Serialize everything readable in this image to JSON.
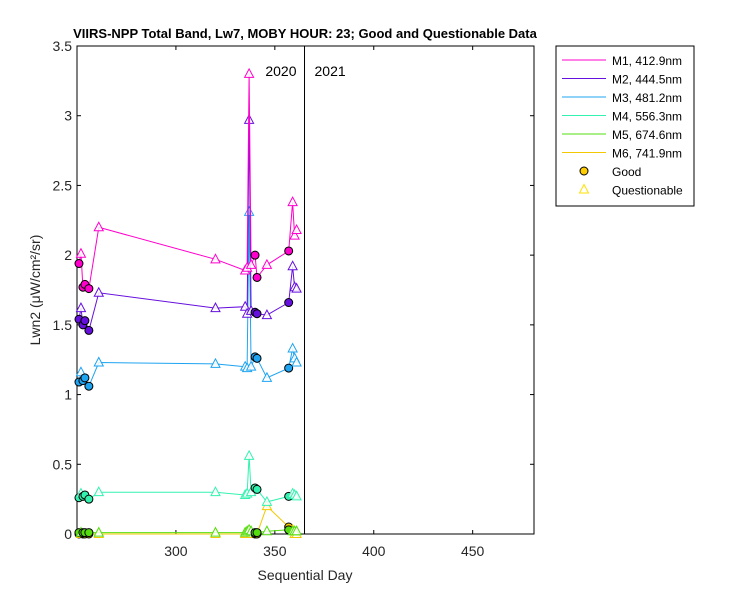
{
  "chart_data": {
    "type": "line",
    "title": "VIIRS-NPP Total Band, Lw7, MOBY HOUR: 23;  Good and Questionable Data",
    "xlabel": "Sequential Day",
    "ylabel": "Lwn2 (μW/cm²/sr)",
    "xlim": [
      250,
      481
    ],
    "ylim": [
      0,
      3.5
    ],
    "xticks": [
      300,
      350,
      400,
      450
    ],
    "yticks": [
      0,
      0.5,
      1,
      1.5,
      2,
      2.5,
      3,
      3.5
    ],
    "xtick_labels": [
      "300",
      "350",
      "400",
      "450"
    ],
    "ytick_labels": [
      "0",
      "0.5",
      "1",
      "1.5",
      "2",
      "2.5",
      "3",
      "3.5"
    ],
    "grid": false,
    "legend_position": "outside-top-right",
    "year_boundary": {
      "x": 365,
      "left_label": "2020",
      "right_label": "2021"
    },
    "x": [
      251,
      252,
      253,
      254,
      256,
      261,
      320,
      335,
      336,
      337,
      338,
      340,
      341,
      346,
      357,
      359,
      360,
      361
    ],
    "q": [
      "G",
      "Q",
      "G",
      "G",
      "G",
      "Q",
      "Q",
      "Q",
      "Q",
      "Q",
      "Q",
      "G",
      "G",
      "Q",
      "G",
      "Q",
      "Q",
      "Q"
    ],
    "series": [
      {
        "name": "M1, 412.9nm",
        "color": "#ff00cc",
        "values": [
          1.94,
          2.01,
          1.77,
          1.79,
          1.76,
          2.2,
          1.97,
          1.89,
          1.91,
          3.3,
          1.93,
          2.0,
          1.84,
          1.93,
          2.03,
          2.38,
          2.14,
          2.18
        ]
      },
      {
        "name": "M2, 444.5nm",
        "color": "#6610dd",
        "values": [
          1.54,
          1.62,
          1.5,
          1.53,
          1.46,
          1.73,
          1.62,
          1.63,
          1.58,
          2.97,
          1.6,
          1.59,
          1.58,
          1.57,
          1.66,
          1.92,
          1.77,
          1.76
        ]
      },
      {
        "name": "M3, 481.2nm",
        "color": "#1ea4f0",
        "values": [
          1.09,
          1.16,
          1.1,
          1.12,
          1.06,
          1.23,
          1.22,
          1.2,
          1.19,
          2.31,
          1.2,
          1.27,
          1.26,
          1.12,
          1.19,
          1.33,
          1.26,
          1.23
        ]
      },
      {
        "name": "M4, 556.3nm",
        "color": "#33f2b0",
        "values": [
          0.26,
          0.29,
          0.27,
          0.28,
          0.25,
          0.3,
          0.3,
          0.28,
          0.29,
          0.56,
          0.3,
          0.33,
          0.32,
          0.23,
          0.27,
          0.29,
          0.28,
          0.27
        ]
      },
      {
        "name": "M5, 674.6nm",
        "color": "#55dd10",
        "values": [
          0.01,
          0.01,
          0.01,
          0.01,
          0.01,
          0.01,
          0.01,
          0.01,
          0.02,
          0.03,
          0.02,
          0.01,
          0.01,
          0.02,
          0.03,
          0.02,
          0.02,
          0.02
        ]
      },
      {
        "name": "M6, 741.9nm",
        "color": "#f2c800",
        "values": [
          0.0,
          0.0,
          0.0,
          0.0,
          0.0,
          0.0,
          0.0,
          0.0,
          0.0,
          0.01,
          0.0,
          0.0,
          0.0,
          0.2,
          0.05,
          0.03,
          0.0,
          0.0
        ]
      }
    ],
    "legend_markers": [
      {
        "name": "Good",
        "marker": "circle",
        "fill": "#ffcc00"
      },
      {
        "name": "Questionable",
        "marker": "triangle",
        "stroke": "#ffe000"
      }
    ]
  }
}
